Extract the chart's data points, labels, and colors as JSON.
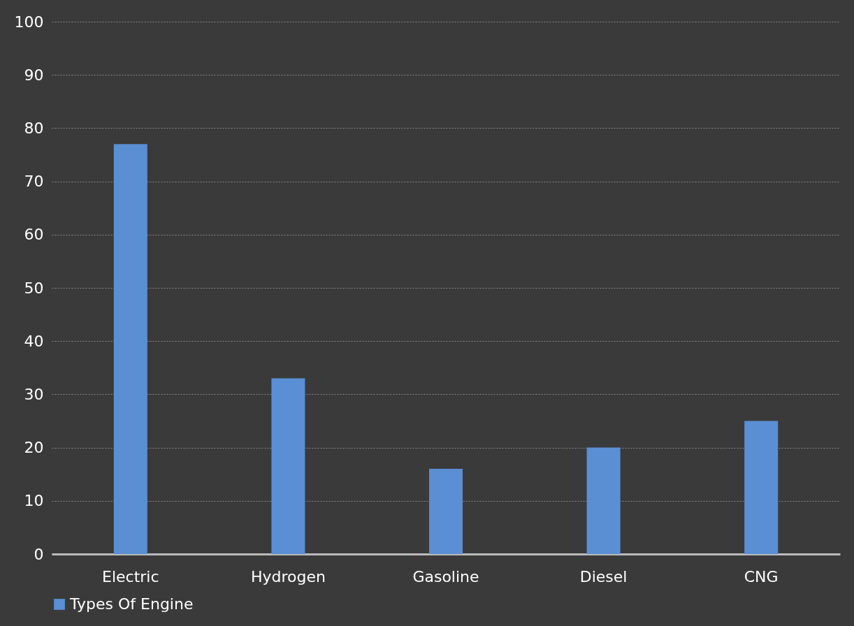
{
  "chart_data": {
    "type": "bar",
    "categories": [
      "Electric",
      "Hydrogen",
      "Gasoline",
      "Diesel",
      "CNG"
    ],
    "series": [
      {
        "name": "Types Of Engine",
        "color": "#5a8fd4",
        "values": [
          77,
          33,
          16,
          20,
          25
        ]
      }
    ],
    "ylim": [
      0,
      100
    ],
    "yticks": [
      0,
      10,
      20,
      30,
      40,
      50,
      60,
      70,
      80,
      90,
      100
    ],
    "grid": "y",
    "legend": "bottom"
  }
}
